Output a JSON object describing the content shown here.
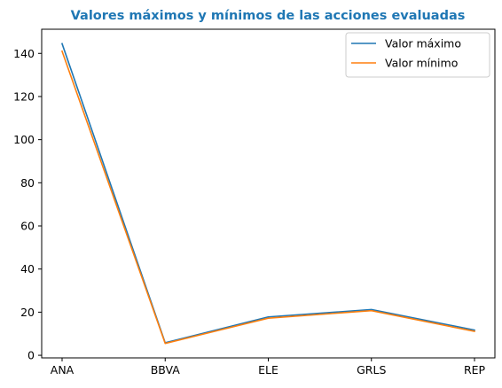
{
  "chart_data": {
    "type": "line",
    "title": "Valores máximos y mínimos de las acciones evaluadas",
    "title_color": "#1f77b4",
    "xlabel": "",
    "ylabel": "",
    "categories": [
      "ANA",
      "BBVA",
      "ELE",
      "GRLS",
      "REP"
    ],
    "series": [
      {
        "name": "Valor máximo",
        "color": "#1f77b4",
        "values": [
          144.5,
          5.8,
          17.8,
          21.2,
          11.7
        ]
      },
      {
        "name": "Valor mínimo",
        "color": "#ff7f0e",
        "values": [
          141.0,
          5.5,
          17.2,
          20.7,
          11.1
        ]
      }
    ],
    "ylim": [
      -1.2,
      151.2
    ],
    "yticks": [
      "0",
      "20",
      "40",
      "60",
      "80",
      "100",
      "120",
      "140"
    ],
    "grid": false,
    "legend_position": "upper right"
  }
}
